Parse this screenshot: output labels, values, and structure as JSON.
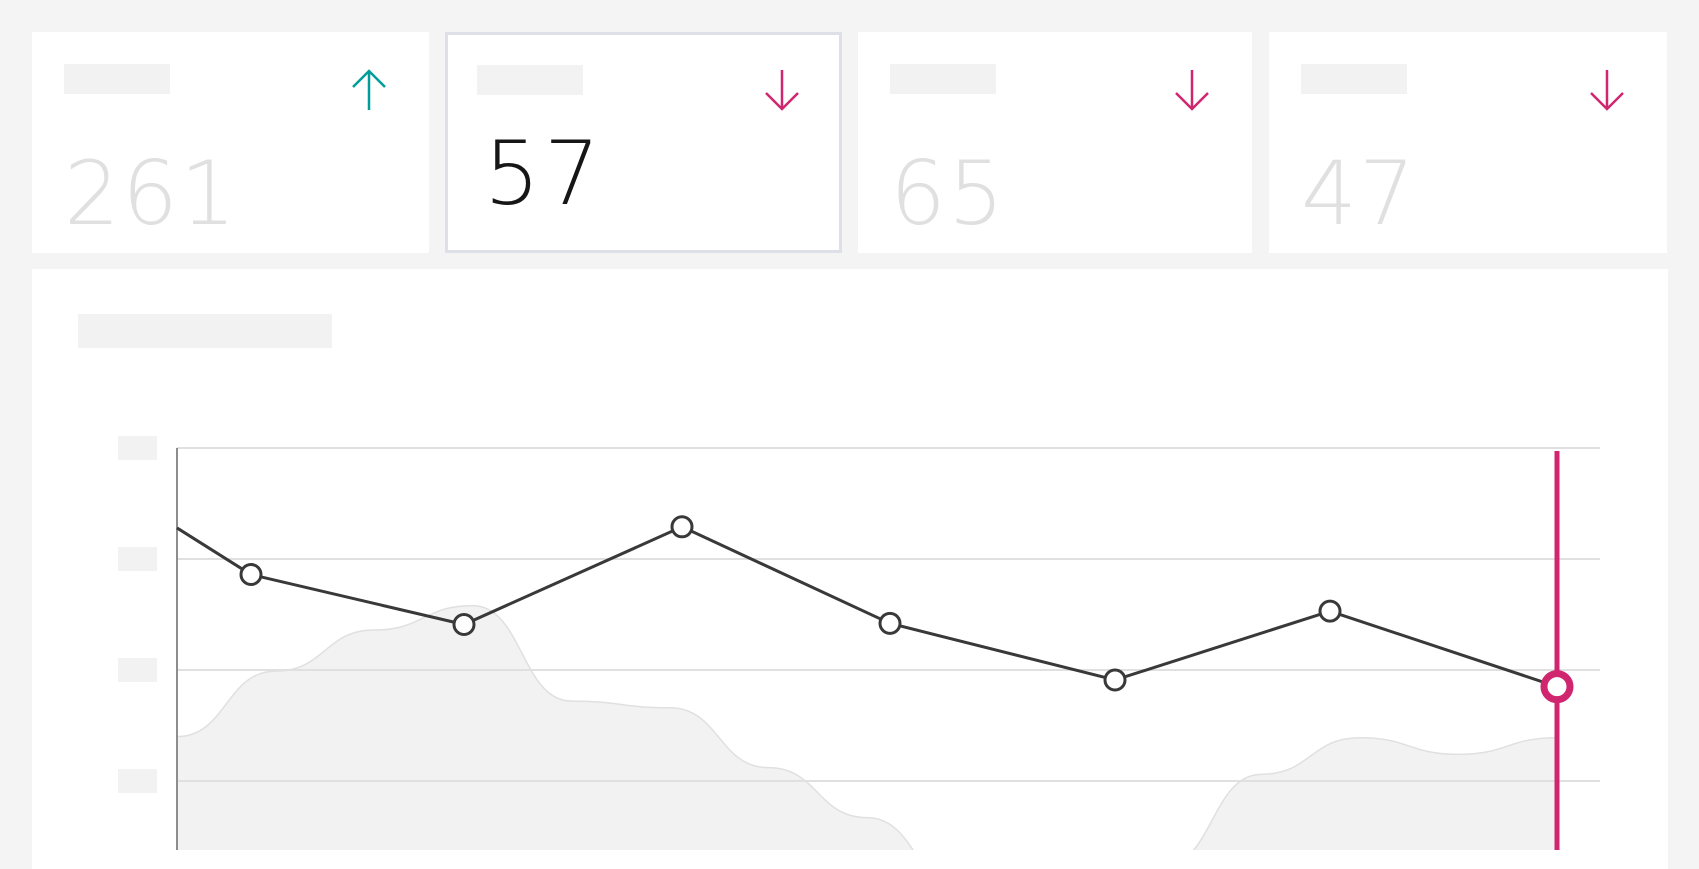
{
  "kpi_cards": [
    {
      "value": "261",
      "trend": "up",
      "selected": false
    },
    {
      "value": "57",
      "trend": "down",
      "selected": true
    },
    {
      "value": "65",
      "trend": "down",
      "selected": false
    },
    {
      "value": "47",
      "trend": "down",
      "selected": false
    }
  ],
  "colors": {
    "up": "#009d9a",
    "down": "#d02670",
    "line": "#393939",
    "area": "#f2f2f2",
    "grid": "#e0e0e0"
  },
  "chart_data": {
    "type": "line",
    "ylim": [
      0,
      4
    ],
    "grid": true,
    "selected_index": 7,
    "series": [
      {
        "values": [
          3.28,
          2.86,
          2.41,
          3.29,
          2.42,
          1.91,
          2.53,
          1.85
        ]
      }
    ],
    "background_area": [
      1.4,
      1.99,
      2.36,
      2.58,
      1.72,
      1.66,
      1.12,
      0.67,
      0.0,
      0.0,
      0.23,
      1.06,
      1.39,
      1.24,
      1.39
    ]
  }
}
